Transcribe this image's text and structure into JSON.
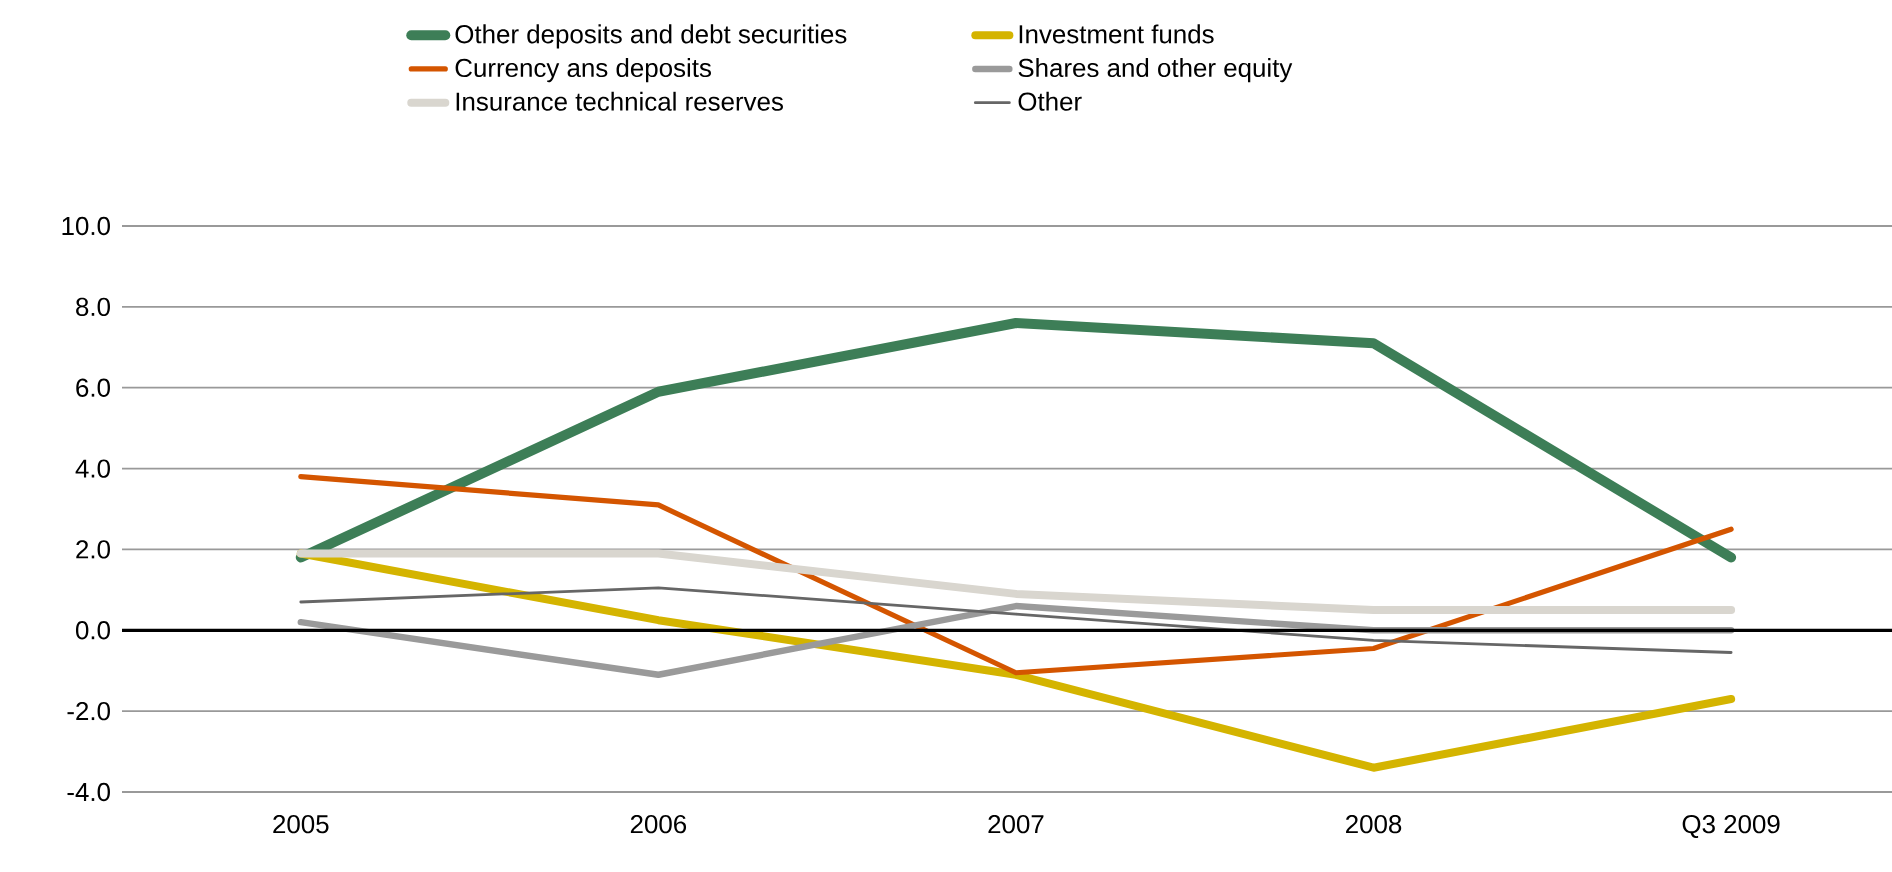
{
  "chart_data": {
    "type": "line",
    "categories": [
      "2005",
      "2006",
      "2007",
      "2008",
      "Q3 2009"
    ],
    "series": [
      {
        "name": "Other deposits and debt securities",
        "color": "#3d7e57",
        "values": [
          1.8,
          5.9,
          7.6,
          7.1,
          1.8
        ]
      },
      {
        "name": "Investment funds",
        "color": "#d4b400",
        "values": [
          1.9,
          0.25,
          -1.1,
          -3.4,
          -1.7
        ]
      },
      {
        "name": "Currency ans deposits",
        "color": "#d45500",
        "values": [
          3.8,
          3.1,
          -1.05,
          -0.45,
          2.5
        ]
      },
      {
        "name": "Shares and other equity",
        "color": "#9a9a9a",
        "values": [
          0.2,
          -1.1,
          0.6,
          0.0,
          0.0
        ]
      },
      {
        "name": "Insurance technical reserves",
        "color": "#d9d6cf",
        "values": [
          1.9,
          1.9,
          0.9,
          0.5,
          0.5
        ]
      },
      {
        "name": "Other",
        "color": "#666666",
        "values": [
          0.7,
          1.05,
          0.4,
          -0.25,
          -0.55
        ]
      }
    ],
    "ylim": [
      -4,
      10
    ],
    "yticks": [
      {
        "value": -4,
        "label": "-4.0"
      },
      {
        "value": -2,
        "label": "-2.0"
      },
      {
        "value": 0,
        "label": "0.0"
      },
      {
        "value": 2,
        "label": "2.0"
      },
      {
        "value": 4,
        "label": "4.0"
      },
      {
        "value": 6,
        "label": "6.0"
      },
      {
        "value": 8,
        "label": "8.0"
      },
      {
        "value": 10,
        "label": "10.0"
      }
    ],
    "grid": "y",
    "legend": "top",
    "line_style": "solid",
    "marker": "none"
  }
}
